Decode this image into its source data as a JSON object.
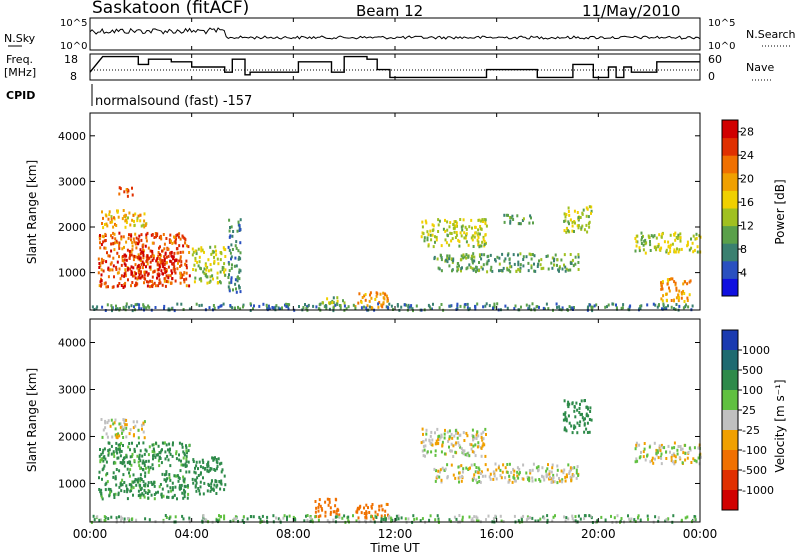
{
  "header": {
    "title": "Saskatoon (fitACF)",
    "beam": "Beam 12",
    "date": "11/May/2010"
  },
  "param_labels": {
    "nsky": "N.Sky",
    "freq_line1": "Freq.",
    "freq_line2": "[MHz]",
    "cpid": "CPID",
    "nsearch": "N.Search",
    "nave": "Nave"
  },
  "noise_axis": {
    "left_ticks": [
      "10^5",
      "10^0"
    ],
    "right_ticks": [
      "10^5",
      "10^0"
    ]
  },
  "freq_axis": {
    "left_ticks": [
      "18",
      "8"
    ],
    "right_ticks": [
      "60",
      "0"
    ]
  },
  "cpid_text": "normalsound (fast) -157",
  "x_axis": {
    "ticks": [
      "00:00",
      "04:00",
      "08:00",
      "12:00",
      "16:00",
      "20:00",
      "00:00"
    ],
    "label": "Time UT"
  },
  "y_axis": {
    "label": "Slant Range [km]",
    "ticks": [
      "1000",
      "2000",
      "3000",
      "4000"
    ]
  },
  "power_scale": {
    "label": "Power [dB]",
    "ticks": [
      "4",
      "8",
      "12",
      "16",
      "20",
      "24",
      "28"
    ],
    "colors": [
      "#1010e0",
      "#2a50c0",
      "#3a8070",
      "#5aa04a",
      "#a0c020",
      "#f0d000",
      "#f0a000",
      "#f07000",
      "#e03000",
      "#d00000"
    ]
  },
  "velocity_scale": {
    "label": "Velocity [m s⁻¹]",
    "ticks": [
      "1000",
      "500",
      "100",
      "25",
      "-25",
      "-100",
      "-500",
      "-1000"
    ],
    "colors": [
      "#1a3ab0",
      "#1f6a70",
      "#2e8a4a",
      "#60c040",
      "#c0c0c0",
      "#f0a000",
      "#f07000",
      "#e03000",
      "#d00000"
    ]
  },
  "chart_data": {
    "type": "heatmap",
    "x_range_hours": [
      0,
      24
    ],
    "y_range_km": [
      180,
      4500
    ],
    "freq_mhz": [
      [
        0.0,
        11
      ],
      [
        0.5,
        17
      ],
      [
        1.9,
        17
      ],
      [
        1.9,
        14
      ],
      [
        2.3,
        14
      ],
      [
        2.3,
        16
      ],
      [
        3.2,
        16
      ],
      [
        3.2,
        15
      ],
      [
        4.0,
        15
      ],
      [
        4.0,
        13
      ],
      [
        5.3,
        13
      ],
      [
        5.3,
        11
      ],
      [
        5.6,
        11
      ],
      [
        5.6,
        16
      ],
      [
        6.1,
        16
      ],
      [
        6.1,
        10
      ],
      [
        6.3,
        10
      ],
      [
        6.3,
        11
      ],
      [
        8.2,
        11
      ],
      [
        8.2,
        15
      ],
      [
        9.5,
        15
      ],
      [
        9.5,
        11
      ],
      [
        10.0,
        11
      ],
      [
        10.0,
        17
      ],
      [
        10.9,
        17
      ],
      [
        10.9,
        16
      ],
      [
        11.3,
        16
      ],
      [
        11.3,
        12
      ],
      [
        11.8,
        12
      ],
      [
        11.8,
        9
      ],
      [
        15.6,
        9
      ],
      [
        15.6,
        12
      ],
      [
        17.6,
        12
      ],
      [
        17.6,
        9
      ],
      [
        19.0,
        9
      ],
      [
        19.0,
        14
      ],
      [
        19.8,
        14
      ],
      [
        19.8,
        9
      ],
      [
        20.4,
        9
      ],
      [
        20.4,
        13
      ],
      [
        20.7,
        13
      ],
      [
        20.7,
        9
      ],
      [
        21.0,
        9
      ],
      [
        21.0,
        13
      ],
      [
        21.3,
        13
      ],
      [
        21.3,
        11
      ],
      [
        22.3,
        11
      ],
      [
        22.3,
        15
      ],
      [
        24.0,
        15
      ]
    ],
    "features_power_db": [
      {
        "t": [
          0.3,
          3.9
        ],
        "r": [
          700,
          1900
        ],
        "db": 24
      },
      {
        "t": [
          1.3,
          3.4
        ],
        "r": [
          900,
          1500
        ],
        "db": 28
      },
      {
        "t": [
          0.4,
          2.2
        ],
        "r": [
          2000,
          2400
        ],
        "db": 18
      },
      {
        "t": [
          1.1,
          1.8
        ],
        "r": [
          2700,
          2900
        ],
        "db": 24
      },
      {
        "t": [
          4.0,
          5.3
        ],
        "r": [
          800,
          1600
        ],
        "db": 14
      },
      {
        "t": [
          5.4,
          5.9
        ],
        "r": [
          600,
          2200
        ],
        "db": 8
      },
      {
        "t": [
          9.0,
          10.0
        ],
        "r": [
          250,
          500
        ],
        "db": 12
      },
      {
        "t": [
          10.4,
          11.7
        ],
        "r": [
          250,
          600
        ],
        "db": 20
      },
      {
        "t": [
          13.0,
          15.6
        ],
        "r": [
          1600,
          2200
        ],
        "db": 14
      },
      {
        "t": [
          13.5,
          19.2
        ],
        "r": [
          1050,
          1450
        ],
        "db": 10
      },
      {
        "t": [
          16.2,
          17.4
        ],
        "r": [
          2100,
          2300
        ],
        "db": 10
      },
      {
        "t": [
          18.6,
          19.7
        ],
        "r": [
          1900,
          2500
        ],
        "db": 14
      },
      {
        "t": [
          21.4,
          24.0
        ],
        "r": [
          1450,
          1900
        ],
        "db": 14
      },
      {
        "t": [
          22.4,
          23.7
        ],
        "r": [
          400,
          900
        ],
        "db": 20
      },
      {
        "t": [
          0.0,
          24.0
        ],
        "r": [
          200,
          350
        ],
        "db": 8
      }
    ],
    "features_velocity_ms": [
      {
        "t": [
          0.3,
          3.9
        ],
        "r": [
          700,
          1900
        ],
        "v": 100
      },
      {
        "t": [
          0.4,
          2.2
        ],
        "r": [
          2000,
          2400
        ],
        "v": 0
      },
      {
        "t": [
          4.0,
          5.3
        ],
        "r": [
          800,
          1600
        ],
        "v": 150
      },
      {
        "t": [
          8.8,
          9.8
        ],
        "r": [
          300,
          700
        ],
        "v": -200
      },
      {
        "t": [
          10.4,
          11.7
        ],
        "r": [
          250,
          600
        ],
        "v": -150
      },
      {
        "t": [
          13.0,
          15.6
        ],
        "r": [
          1600,
          2200
        ],
        "v": 0
      },
      {
        "t": [
          13.5,
          19.2
        ],
        "r": [
          1050,
          1450
        ],
        "v": 0
      },
      {
        "t": [
          18.6,
          19.7
        ],
        "r": [
          2100,
          2800
        ],
        "v": 150
      },
      {
        "t": [
          21.4,
          24.0
        ],
        "r": [
          1450,
          1900
        ],
        "v": 0
      },
      {
        "t": [
          0.0,
          24.0
        ],
        "r": [
          200,
          350
        ],
        "v": 50
      }
    ]
  }
}
